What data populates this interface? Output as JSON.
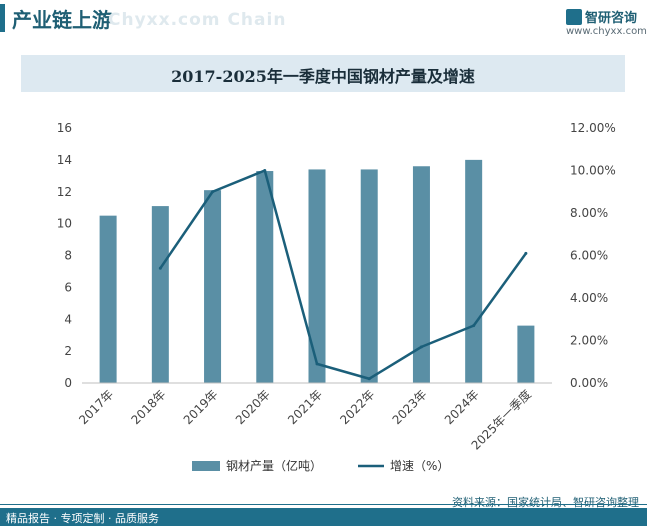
{
  "header": {
    "section_title": "产业链上游",
    "section_ghost": "Chyxx.com Chain",
    "brand_name": "智研咨询",
    "website": "www.chyxx.com"
  },
  "footer": {
    "slogan": "精品报告 · 专项定制 · 品质服务",
    "source": "资料来源：国家统计局、智研咨询整理"
  },
  "colors": {
    "bar": "#5a8fa5",
    "line": "#1b5f7a",
    "axis_text": "#444444"
  },
  "chart_data": {
    "type": "bar",
    "title": "2017-2025年一季度中国钢材产量及增速",
    "categories": [
      "2017年",
      "2018年",
      "2019年",
      "2020年",
      "2021年",
      "2022年",
      "2023年",
      "2024年",
      "2025年一季度"
    ],
    "series": [
      {
        "name": "钢材产量（亿吨）",
        "type": "bar",
        "axis": "left",
        "values": [
          10.5,
          11.1,
          12.1,
          13.3,
          13.4,
          13.4,
          13.6,
          14.0,
          3.6
        ]
      },
      {
        "name": "增速（%）",
        "type": "line",
        "axis": "right",
        "values": [
          null,
          5.4,
          9.0,
          10.0,
          0.9,
          0.2,
          1.7,
          2.7,
          6.1
        ]
      }
    ],
    "y_left": {
      "ylim": [
        0,
        16
      ],
      "ticks": [
        "0",
        "2",
        "4",
        "6",
        "8",
        "10",
        "12",
        "14",
        "16"
      ]
    },
    "y_right": {
      "ylim": [
        0,
        12
      ],
      "ticks": [
        "0.00%",
        "2.00%",
        "4.00%",
        "6.00%",
        "8.00%",
        "10.00%",
        "12.00%"
      ]
    },
    "legend": {
      "position": "bottom"
    }
  }
}
